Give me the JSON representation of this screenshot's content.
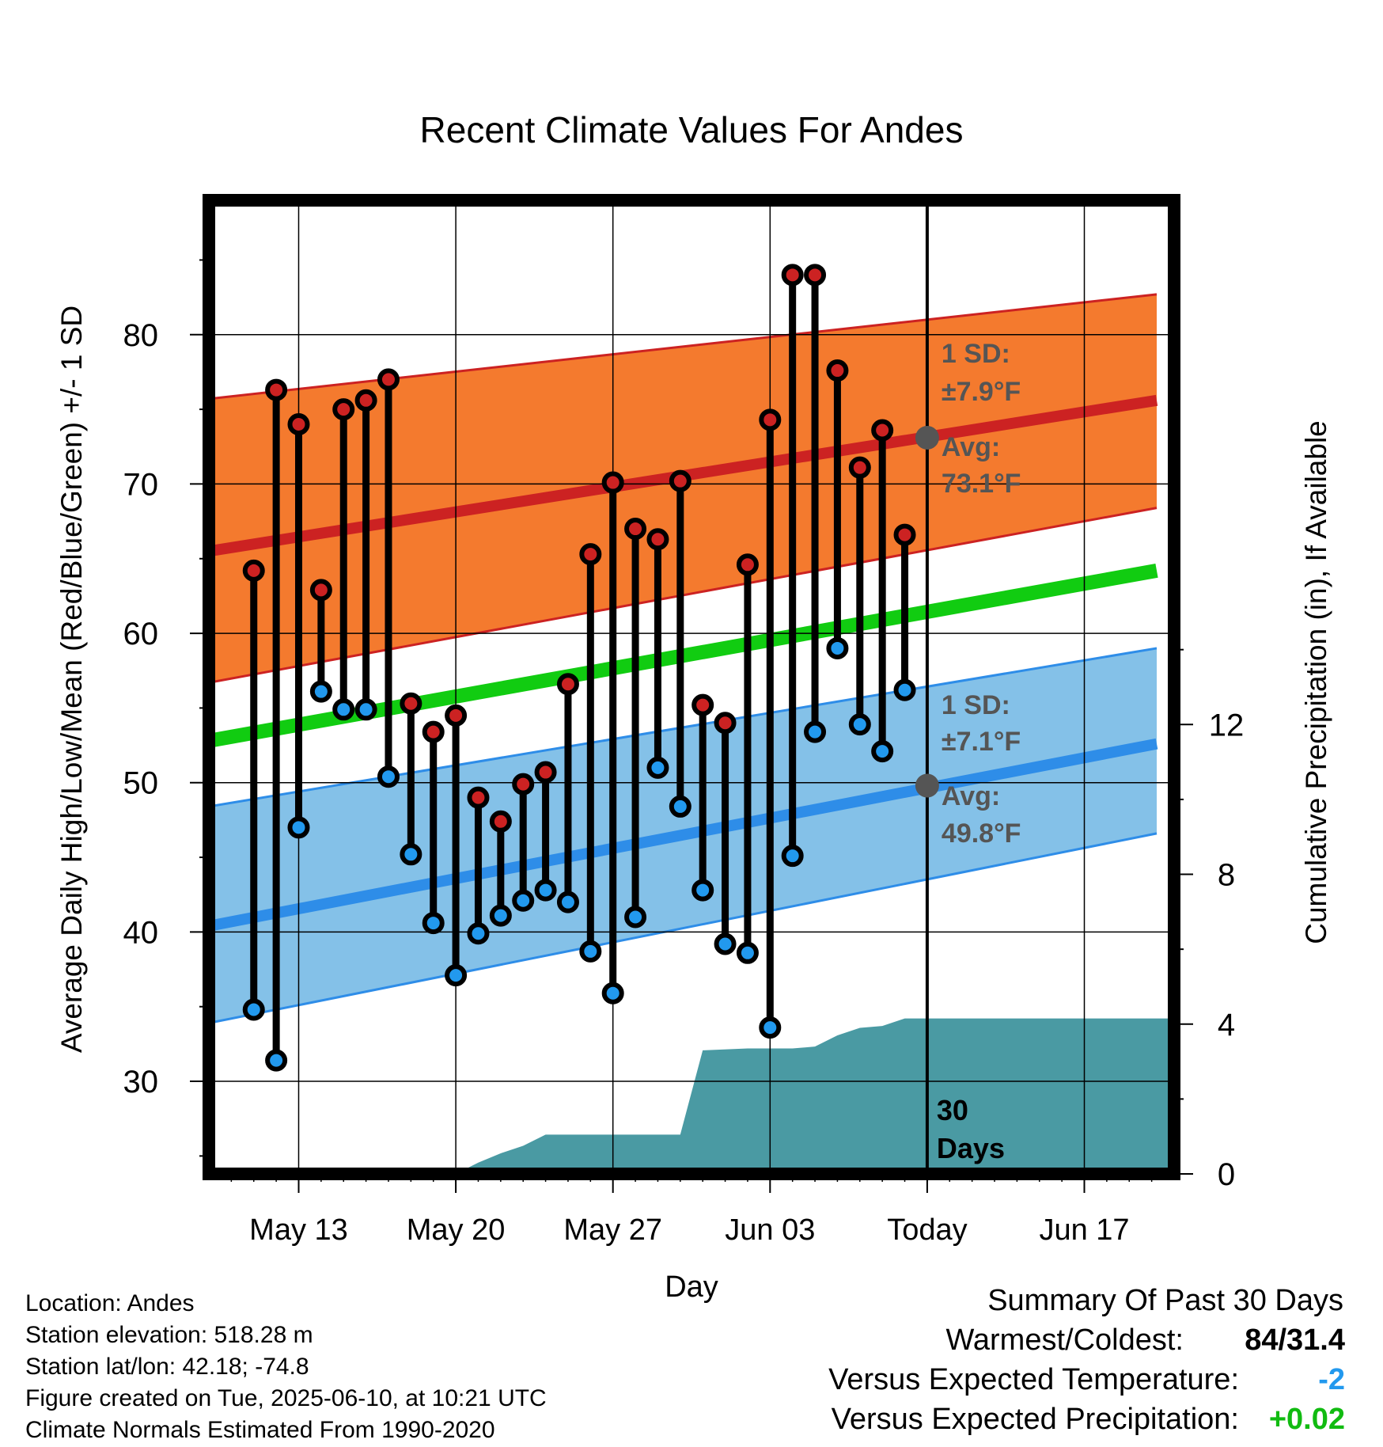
{
  "chart_data": {
    "type": "line",
    "title": "Recent Climate Values For Andes",
    "xlabel": "Day",
    "ylabel": "Average Daily High/Low/Mean (Red/Blue/Green) +/- 1 SD",
    "y2label": "Cumulative Precipitation (in), If Available",
    "x_tick_labels": [
      "May 13",
      "May 20",
      "May 27",
      "Jun 03",
      "Today",
      "Jun 17"
    ],
    "y_ticks": [
      30,
      40,
      50,
      60,
      70,
      80
    ],
    "y2_ticks": [
      0,
      4,
      8,
      12
    ],
    "y_range": [
      23.8,
      89
    ],
    "y2_range": [
      0,
      26
    ],
    "x_domain_days": [
      "2025-05-09",
      "2025-06-21"
    ],
    "grid": true,
    "days": [
      "2025-05-11",
      "2025-05-12",
      "2025-05-13",
      "2025-05-14",
      "2025-05-15",
      "2025-05-16",
      "2025-05-17",
      "2025-05-18",
      "2025-05-19",
      "2025-05-20",
      "2025-05-21",
      "2025-05-22",
      "2025-05-23",
      "2025-05-24",
      "2025-05-25",
      "2025-05-26",
      "2025-05-27",
      "2025-05-28",
      "2025-05-29",
      "2025-05-30",
      "2025-05-31",
      "2025-06-01",
      "2025-06-02",
      "2025-06-03",
      "2025-06-04",
      "2025-06-05",
      "2025-06-06",
      "2025-06-07",
      "2025-06-08",
      "2025-06-09"
    ],
    "series": [
      {
        "name": "High",
        "color": "#cc2222",
        "values": [
          64.2,
          76.3,
          74.0,
          62.9,
          75.0,
          75.6,
          77.0,
          55.3,
          53.4,
          54.5,
          49.0,
          47.4,
          49.9,
          50.7,
          56.6,
          65.3,
          70.1,
          67.0,
          66.3,
          70.2,
          55.2,
          54.0,
          64.6,
          74.3,
          84.0,
          84.0,
          77.6,
          71.1,
          73.6,
          66.6
        ]
      },
      {
        "name": "Low",
        "color": "#2299ee",
        "values": [
          34.8,
          31.4,
          47.0,
          56.1,
          54.9,
          54.9,
          50.4,
          45.2,
          40.6,
          37.1,
          39.9,
          41.1,
          42.1,
          42.8,
          42.0,
          38.7,
          35.9,
          41.0,
          51.0,
          48.4,
          42.8,
          39.2,
          38.6,
          33.6,
          45.1,
          53.4,
          59.0,
          53.9,
          52.1,
          56.2
        ]
      }
    ],
    "normals": {
      "high_mean": [
        65.5,
        75.6
      ],
      "high_sd_band": [
        [
          56.7,
          75.7
        ],
        [
          68.4,
          82.7
        ]
      ],
      "low_mean": [
        40.4,
        52.6
      ],
      "low_sd_band": [
        [
          33.9,
          48.4
        ],
        [
          46.6,
          59.0
        ]
      ],
      "mean_line": [
        52.8,
        64.2
      ],
      "range_days": [
        "2025-05-09",
        "2025-06-21"
      ]
    },
    "precip_cumulative": {
      "days": [
        "2025-05-09",
        "2025-05-19",
        "2025-05-20",
        "2025-05-21",
        "2025-05-22",
        "2025-05-23",
        "2025-05-24",
        "2025-05-25",
        "2025-05-30",
        "2025-05-31",
        "2025-06-02",
        "2025-06-04",
        "2025-06-05",
        "2025-06-06",
        "2025-06-07",
        "2025-06-08",
        "2025-06-09",
        "2025-06-10",
        "2025-06-21"
      ],
      "values": [
        0,
        0,
        0,
        0.3,
        0.55,
        0.75,
        1.05,
        1.05,
        1.05,
        3.3,
        3.35,
        3.35,
        3.4,
        3.7,
        3.9,
        3.95,
        4.15,
        4.15,
        4.15
      ]
    },
    "today_marker": {
      "label_line1": "30",
      "label_line2": "Days",
      "high_sd_label_1": "1 SD:",
      "high_sd_label_2": "±7.9°F",
      "high_avg_label_1": "Avg:",
      "high_avg_label_2": "73.1°F",
      "high_avg_value": 73.1,
      "low_sd_label_1": "1 SD:",
      "low_sd_label_2": "±7.1°F",
      "low_avg_label_1": "Avg:",
      "low_avg_label_2": "49.8°F",
      "low_avg_value": 49.8
    },
    "colors": {
      "high_band": "#f47a2e",
      "high_line": "#cc2222",
      "low_band": "#84c1e8",
      "low_line": "#2e8de8",
      "mean_line": "#11cc11",
      "precip": "#4a9aa3",
      "dot_high": "#cc2222",
      "dot_low": "#2299ee",
      "annotation": "#555555"
    }
  },
  "meta": {
    "location": "Location: Andes",
    "elevation": "Station elevation: 518.28 m",
    "latlon": "Station lat/lon: 42.18; -74.8",
    "created": "Figure created on Tue, 2025-06-10, at 10:21 UTC",
    "normals": "Climate Normals Estimated From 1990-2020"
  },
  "summary": {
    "title": "Summary Of Past 30 Days",
    "warmest_label": "Warmest/Coldest:",
    "warmest_value": "84/31.4",
    "temp_label": "Versus Expected Temperature:",
    "temp_value": "-2",
    "temp_color": "#2299ee",
    "precip_label": "Versus Expected Precipitation:",
    "precip_value": "+0.02",
    "precip_color": "#11bb11"
  }
}
